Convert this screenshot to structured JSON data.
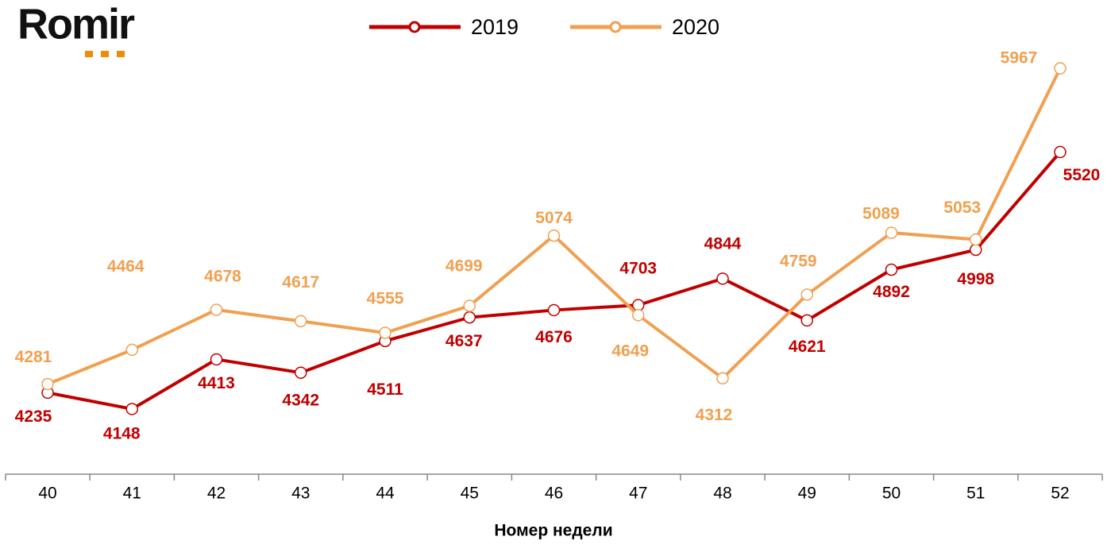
{
  "logo": "Romir",
  "chart_data": {
    "type": "line",
    "x_label": "Номер недели",
    "categories": [
      "40",
      "41",
      "42",
      "43",
      "44",
      "45",
      "46",
      "47",
      "48",
      "49",
      "50",
      "51",
      "52"
    ],
    "series": [
      {
        "name": "2019",
        "color": "#c00000",
        "values": [
          4235,
          4148,
          4413,
          4342,
          4511,
          4637,
          4676,
          4703,
          4844,
          4621,
          4892,
          4998,
          5520
        ]
      },
      {
        "name": "2020",
        "color": "#f0a050",
        "values": [
          4281,
          4464,
          4678,
          4617,
          4555,
          4699,
          5074,
          4649,
          4312,
          4759,
          5089,
          5053,
          5967
        ]
      }
    ],
    "ylim": [
      3800,
      6300
    ]
  }
}
